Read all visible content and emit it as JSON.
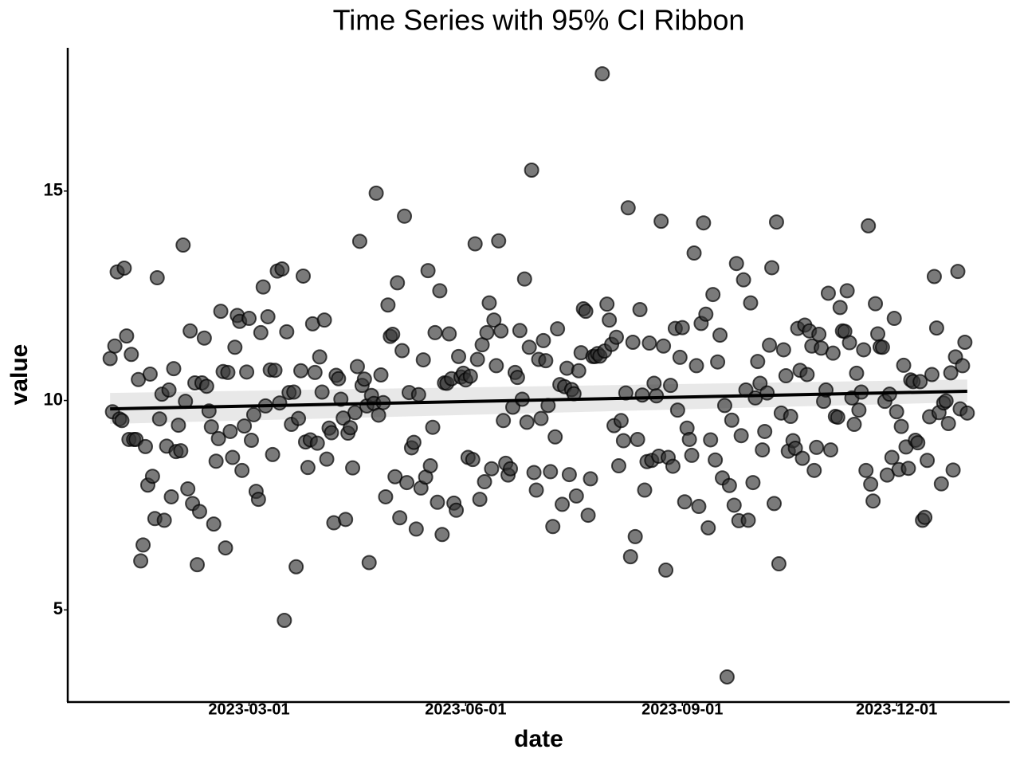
{
  "chart_data": {
    "type": "scatter",
    "title": "Time Series with 95% CI Ribbon",
    "x_label": "date",
    "y_label": "value",
    "xlim": [
      "2022-12-14",
      "2024-01-18"
    ],
    "ylim": [
      2.8,
      18.42
    ],
    "xticks": [
      "2023-03-01",
      "2023-06-01",
      "2023-09-01",
      "2023-12-01"
    ],
    "yticks": [
      5,
      10,
      15
    ],
    "point_color": "#333333",
    "x": [
      "2023-01-01",
      "2023-01-02",
      "2023-01-03",
      "2023-01-04",
      "2023-01-05",
      "2023-01-06",
      "2023-01-07",
      "2023-01-08",
      "2023-01-09",
      "2023-01-10",
      "2023-01-11",
      "2023-01-12",
      "2023-01-13",
      "2023-01-14",
      "2023-01-15",
      "2023-01-16",
      "2023-01-17",
      "2023-01-18",
      "2023-01-19",
      "2023-01-20",
      "2023-01-21",
      "2023-01-22",
      "2023-01-23",
      "2023-01-24",
      "2023-01-25",
      "2023-01-26",
      "2023-01-27",
      "2023-01-28",
      "2023-01-29",
      "2023-01-30",
      "2023-01-31",
      "2023-02-01",
      "2023-02-02",
      "2023-02-03",
      "2023-02-04",
      "2023-02-05",
      "2023-02-06",
      "2023-02-07",
      "2023-02-08",
      "2023-02-09",
      "2023-02-10",
      "2023-02-11",
      "2023-02-12",
      "2023-02-13",
      "2023-02-14",
      "2023-02-15",
      "2023-02-16",
      "2023-02-17",
      "2023-02-18",
      "2023-02-19",
      "2023-02-20",
      "2023-02-21",
      "2023-02-22",
      "2023-02-23",
      "2023-02-24",
      "2023-02-25",
      "2023-02-26",
      "2023-02-27",
      "2023-02-28",
      "2023-03-01",
      "2023-03-02",
      "2023-03-03",
      "2023-03-04",
      "2023-03-05",
      "2023-03-06",
      "2023-03-07",
      "2023-03-08",
      "2023-03-09",
      "2023-03-10",
      "2023-03-11",
      "2023-03-12",
      "2023-03-13",
      "2023-03-14",
      "2023-03-15",
      "2023-03-16",
      "2023-03-17",
      "2023-03-18",
      "2023-03-19",
      "2023-03-20",
      "2023-03-21",
      "2023-03-22",
      "2023-03-23",
      "2023-03-24",
      "2023-03-25",
      "2023-03-26",
      "2023-03-27",
      "2023-03-28",
      "2023-03-29",
      "2023-03-30",
      "2023-03-31",
      "2023-04-01",
      "2023-04-02",
      "2023-04-03",
      "2023-04-04",
      "2023-04-05",
      "2023-04-06",
      "2023-04-07",
      "2023-04-08",
      "2023-04-09",
      "2023-04-10",
      "2023-04-11",
      "2023-04-12",
      "2023-04-13",
      "2023-04-14",
      "2023-04-15",
      "2023-04-16",
      "2023-04-17",
      "2023-04-18",
      "2023-04-19",
      "2023-04-20",
      "2023-04-21",
      "2023-04-22",
      "2023-04-23",
      "2023-04-24",
      "2023-04-25",
      "2023-04-26",
      "2023-04-27",
      "2023-04-28",
      "2023-04-29",
      "2023-04-30",
      "2023-05-01",
      "2023-05-02",
      "2023-05-03",
      "2023-05-04",
      "2023-05-05",
      "2023-05-06",
      "2023-05-07",
      "2023-05-08",
      "2023-05-09",
      "2023-05-10",
      "2023-05-11",
      "2023-05-12",
      "2023-05-13",
      "2023-05-14",
      "2023-05-15",
      "2023-05-16",
      "2023-05-17",
      "2023-05-18",
      "2023-05-19",
      "2023-05-20",
      "2023-05-21",
      "2023-05-22",
      "2023-05-23",
      "2023-05-24",
      "2023-05-25",
      "2023-05-26",
      "2023-05-27",
      "2023-05-28",
      "2023-05-29",
      "2023-05-30",
      "2023-05-31",
      "2023-06-01",
      "2023-06-02",
      "2023-06-03",
      "2023-06-04",
      "2023-06-05",
      "2023-06-06",
      "2023-06-07",
      "2023-06-08",
      "2023-06-09",
      "2023-06-10",
      "2023-06-11",
      "2023-06-12",
      "2023-06-13",
      "2023-06-14",
      "2023-06-15",
      "2023-06-16",
      "2023-06-17",
      "2023-06-18",
      "2023-06-19",
      "2023-06-20",
      "2023-06-21",
      "2023-06-22",
      "2023-06-23",
      "2023-06-24",
      "2023-06-25",
      "2023-06-26",
      "2023-06-27",
      "2023-06-28",
      "2023-06-29",
      "2023-06-30",
      "2023-07-01",
      "2023-07-02",
      "2023-07-03",
      "2023-07-04",
      "2023-07-05",
      "2023-07-06",
      "2023-07-07",
      "2023-07-08",
      "2023-07-09",
      "2023-07-10",
      "2023-07-11",
      "2023-07-12",
      "2023-07-13",
      "2023-07-14",
      "2023-07-15",
      "2023-07-16",
      "2023-07-17",
      "2023-07-18",
      "2023-07-19",
      "2023-07-20",
      "2023-07-21",
      "2023-07-22",
      "2023-07-23",
      "2023-07-24",
      "2023-07-25",
      "2023-07-26",
      "2023-07-27",
      "2023-07-28",
      "2023-07-29",
      "2023-07-30",
      "2023-07-31",
      "2023-08-01",
      "2023-08-02",
      "2023-08-03",
      "2023-08-04",
      "2023-08-05",
      "2023-08-06",
      "2023-08-07",
      "2023-08-08",
      "2023-08-09",
      "2023-08-10",
      "2023-08-11",
      "2023-08-12",
      "2023-08-13",
      "2023-08-14",
      "2023-08-15",
      "2023-08-16",
      "2023-08-17",
      "2023-08-18",
      "2023-08-19",
      "2023-08-20",
      "2023-08-21",
      "2023-08-22",
      "2023-08-23",
      "2023-08-24",
      "2023-08-25",
      "2023-08-26",
      "2023-08-27",
      "2023-08-28",
      "2023-08-29",
      "2023-08-30",
      "2023-08-31",
      "2023-09-01",
      "2023-09-02",
      "2023-09-03",
      "2023-09-04",
      "2023-09-05",
      "2023-09-06",
      "2023-09-07",
      "2023-09-08",
      "2023-09-09",
      "2023-09-10",
      "2023-09-11",
      "2023-09-12",
      "2023-09-13",
      "2023-09-14",
      "2023-09-15",
      "2023-09-16",
      "2023-09-17",
      "2023-09-18",
      "2023-09-19",
      "2023-09-20",
      "2023-09-21",
      "2023-09-22",
      "2023-09-23",
      "2023-09-24",
      "2023-09-25",
      "2023-09-26",
      "2023-09-27",
      "2023-09-28",
      "2023-09-29",
      "2023-09-30",
      "2023-10-01",
      "2023-10-02",
      "2023-10-03",
      "2023-10-04",
      "2023-10-05",
      "2023-10-06",
      "2023-10-07",
      "2023-10-08",
      "2023-10-09",
      "2023-10-10",
      "2023-10-11",
      "2023-10-12",
      "2023-10-13",
      "2023-10-14",
      "2023-10-15",
      "2023-10-16",
      "2023-10-17",
      "2023-10-18",
      "2023-10-19",
      "2023-10-20",
      "2023-10-21",
      "2023-10-22",
      "2023-10-23",
      "2023-10-24",
      "2023-10-25",
      "2023-10-26",
      "2023-10-27",
      "2023-10-28",
      "2023-10-29",
      "2023-10-30",
      "2023-10-31",
      "2023-11-01",
      "2023-11-02",
      "2023-11-03",
      "2023-11-04",
      "2023-11-05",
      "2023-11-06",
      "2023-11-07",
      "2023-11-08",
      "2023-11-09",
      "2023-11-10",
      "2023-11-11",
      "2023-11-12",
      "2023-11-13",
      "2023-11-14",
      "2023-11-15",
      "2023-11-16",
      "2023-11-17",
      "2023-11-18",
      "2023-11-19",
      "2023-11-20",
      "2023-11-21",
      "2023-11-22",
      "2023-11-23",
      "2023-11-24",
      "2023-11-25",
      "2023-11-26",
      "2023-11-27",
      "2023-11-28",
      "2023-11-29",
      "2023-11-30",
      "2023-12-01",
      "2023-12-02",
      "2023-12-03",
      "2023-12-04",
      "2023-12-05",
      "2023-12-06",
      "2023-12-07",
      "2023-12-08",
      "2023-12-09",
      "2023-12-10",
      "2023-12-11",
      "2023-12-12",
      "2023-12-13",
      "2023-12-14",
      "2023-12-15",
      "2023-12-16",
      "2023-12-17",
      "2023-12-18",
      "2023-12-19",
      "2023-12-20",
      "2023-12-21",
      "2023-12-22",
      "2023-12-23",
      "2023-12-24",
      "2023-12-25",
      "2023-12-26",
      "2023-12-27",
      "2023-12-28",
      "2023-12-29",
      "2023-12-30",
      "2023-12-31"
    ],
    "values": [
      11.0,
      9.73,
      11.3,
      13.07,
      9.56,
      9.52,
      13.16,
      11.54,
      9.07,
      11.1,
      9.07,
      9.07,
      10.5,
      6.17,
      6.55,
      8.9,
      7.98,
      10.63,
      8.19,
      7.18,
      12.93,
      9.56,
      10.15,
      7.14,
      8.91,
      10.25,
      7.7,
      10.76,
      8.78,
      9.41,
      8.8,
      13.71,
      9.98,
      7.89,
      11.66,
      7.54,
      10.42,
      6.08,
      7.35,
      10.42,
      11.49,
      10.34,
      9.75,
      9.37,
      7.05,
      8.55,
      9.09,
      12.13,
      10.69,
      6.48,
      10.67,
      9.26,
      8.64,
      11.27,
      12.03,
      11.89,
      8.33,
      9.39,
      10.68,
      11.96,
      9.05,
      9.66,
      7.83,
      7.64,
      11.62,
      12.71,
      9.87,
      12.0,
      10.73,
      8.71,
      10.72,
      13.09,
      9.94,
      13.14,
      4.75,
      11.64,
      10.19,
      9.43,
      10.2,
      6.03,
      9.57,
      10.71,
      12.97,
      9.01,
      8.4,
      9.06,
      11.83,
      10.67,
      8.98,
      11.04,
      10.2,
      11.92,
      8.6,
      9.34,
      9.23,
      7.08,
      10.6,
      10.52,
      10.03,
      9.58,
      7.16,
      9.22,
      9.35,
      8.39,
      9.71,
      10.81,
      13.8,
      10.36,
      10.51,
      9.87,
      6.13,
      10.12,
      9.93,
      14.95,
      9.65,
      10.61,
      9.95,
      7.7,
      12.28,
      11.53,
      11.58,
      8.18,
      12.81,
      7.2,
      11.19,
      14.4,
      8.04,
      10.19,
      8.87,
      9.0,
      6.93,
      10.14,
      7.91,
      10.97,
      8.17,
      13.1,
      8.44,
      9.36,
      11.62,
      7.57,
      12.62,
      6.8,
      10.42,
      10.41,
      11.59,
      10.52,
      7.55,
      7.38,
      11.05,
      10.56,
      10.65,
      10.49,
      8.64,
      10.58,
      8.59,
      13.74,
      10.98,
      7.64,
      11.33,
      8.06,
      11.62,
      12.33,
      8.37,
      11.92,
      10.83,
      13.81,
      11.66,
      9.52,
      8.5,
      8.22,
      8.37,
      9.84,
      10.67,
      10.55,
      11.67,
      10.03,
      12.9,
      9.48,
      11.27,
      15.5,
      8.28,
      7.86,
      10.98,
      9.57,
      11.43,
      10.95,
      9.88,
      8.3,
      6.99,
      9.13,
      11.71,
      10.38,
      7.52,
      10.33,
      10.77,
      8.23,
      10.26,
      10.16,
      7.72,
      10.71,
      11.14,
      12.19,
      12.13,
      7.26,
      8.13,
      11.05,
      11.05,
      11.12,
      11.06,
      17.8,
      11.18,
      12.3,
      11.92,
      11.34,
      9.4,
      11.51,
      8.44,
      9.52,
      9.04,
      10.18,
      14.6,
      6.27,
      11.39,
      6.75,
      9.07,
      12.17,
      10.13,
      7.86,
      8.54,
      11.37,
      8.57,
      10.41,
      10.11,
      8.67,
      14.28,
      11.3,
      5.95,
      8.64,
      10.36,
      8.43,
      11.72,
      9.77,
      11.03,
      11.74,
      7.58,
      9.34,
      9.07,
      8.69,
      13.52,
      10.83,
      7.47,
      11.84,
      14.24,
      12.06,
      6.96,
      9.06,
      12.53,
      8.58,
      10.92,
      11.56,
      8.15,
      9.88,
      3.4,
      7.97,
      9.53,
      7.5,
      13.27,
      7.13,
      9.16,
      12.88,
      10.25,
      7.14,
      12.33,
      8.04,
      10.06,
      10.93,
      10.41,
      8.82,
      9.26,
      10.18,
      11.32,
      13.17,
      7.54,
      14.26,
      6.1,
      9.7,
      11.21,
      10.59,
      8.79,
      9.62,
      9.04,
      8.86,
      11.72,
      10.72,
      8.62,
      11.8,
      10.62,
      11.66,
      11.3,
      8.33,
      8.88,
      11.58,
      11.25,
      9.98,
      10.25,
      12.56,
      8.82,
      11.13,
      9.62,
      9.6,
      12.22,
      11.66,
      11.65,
      12.62,
      11.38,
      10.06,
      9.43,
      10.65,
      9.77,
      10.2,
      11.21,
      8.33,
      14.17,
      8.0,
      7.6,
      12.31,
      11.59,
      11.28,
      11.27,
      9.98,
      8.22,
      10.15,
      8.64,
      11.96,
      9.73,
      8.35,
      9.38,
      10.84,
      8.89,
      8.38,
      10.49,
      10.45,
      9.05,
      8.99,
      10.45,
      7.14,
      7.21,
      8.57,
      9.61,
      10.62,
      12.96,
      11.73,
      9.71,
      8.01,
      9.94,
      9.99,
      9.45,
      10.66,
      8.34,
      11.04,
      13.08,
      9.8,
      10.83,
      11.39,
      9.7
    ],
    "fit": {
      "x": [
        "2023-01-01",
        "2023-12-31"
      ],
      "values": [
        9.8,
        10.22
      ],
      "lower": [
        9.44,
        9.96
      ],
      "upper": [
        10.18,
        10.5
      ],
      "color": "#000000",
      "ribbon_color": "#d9d9d9"
    }
  }
}
